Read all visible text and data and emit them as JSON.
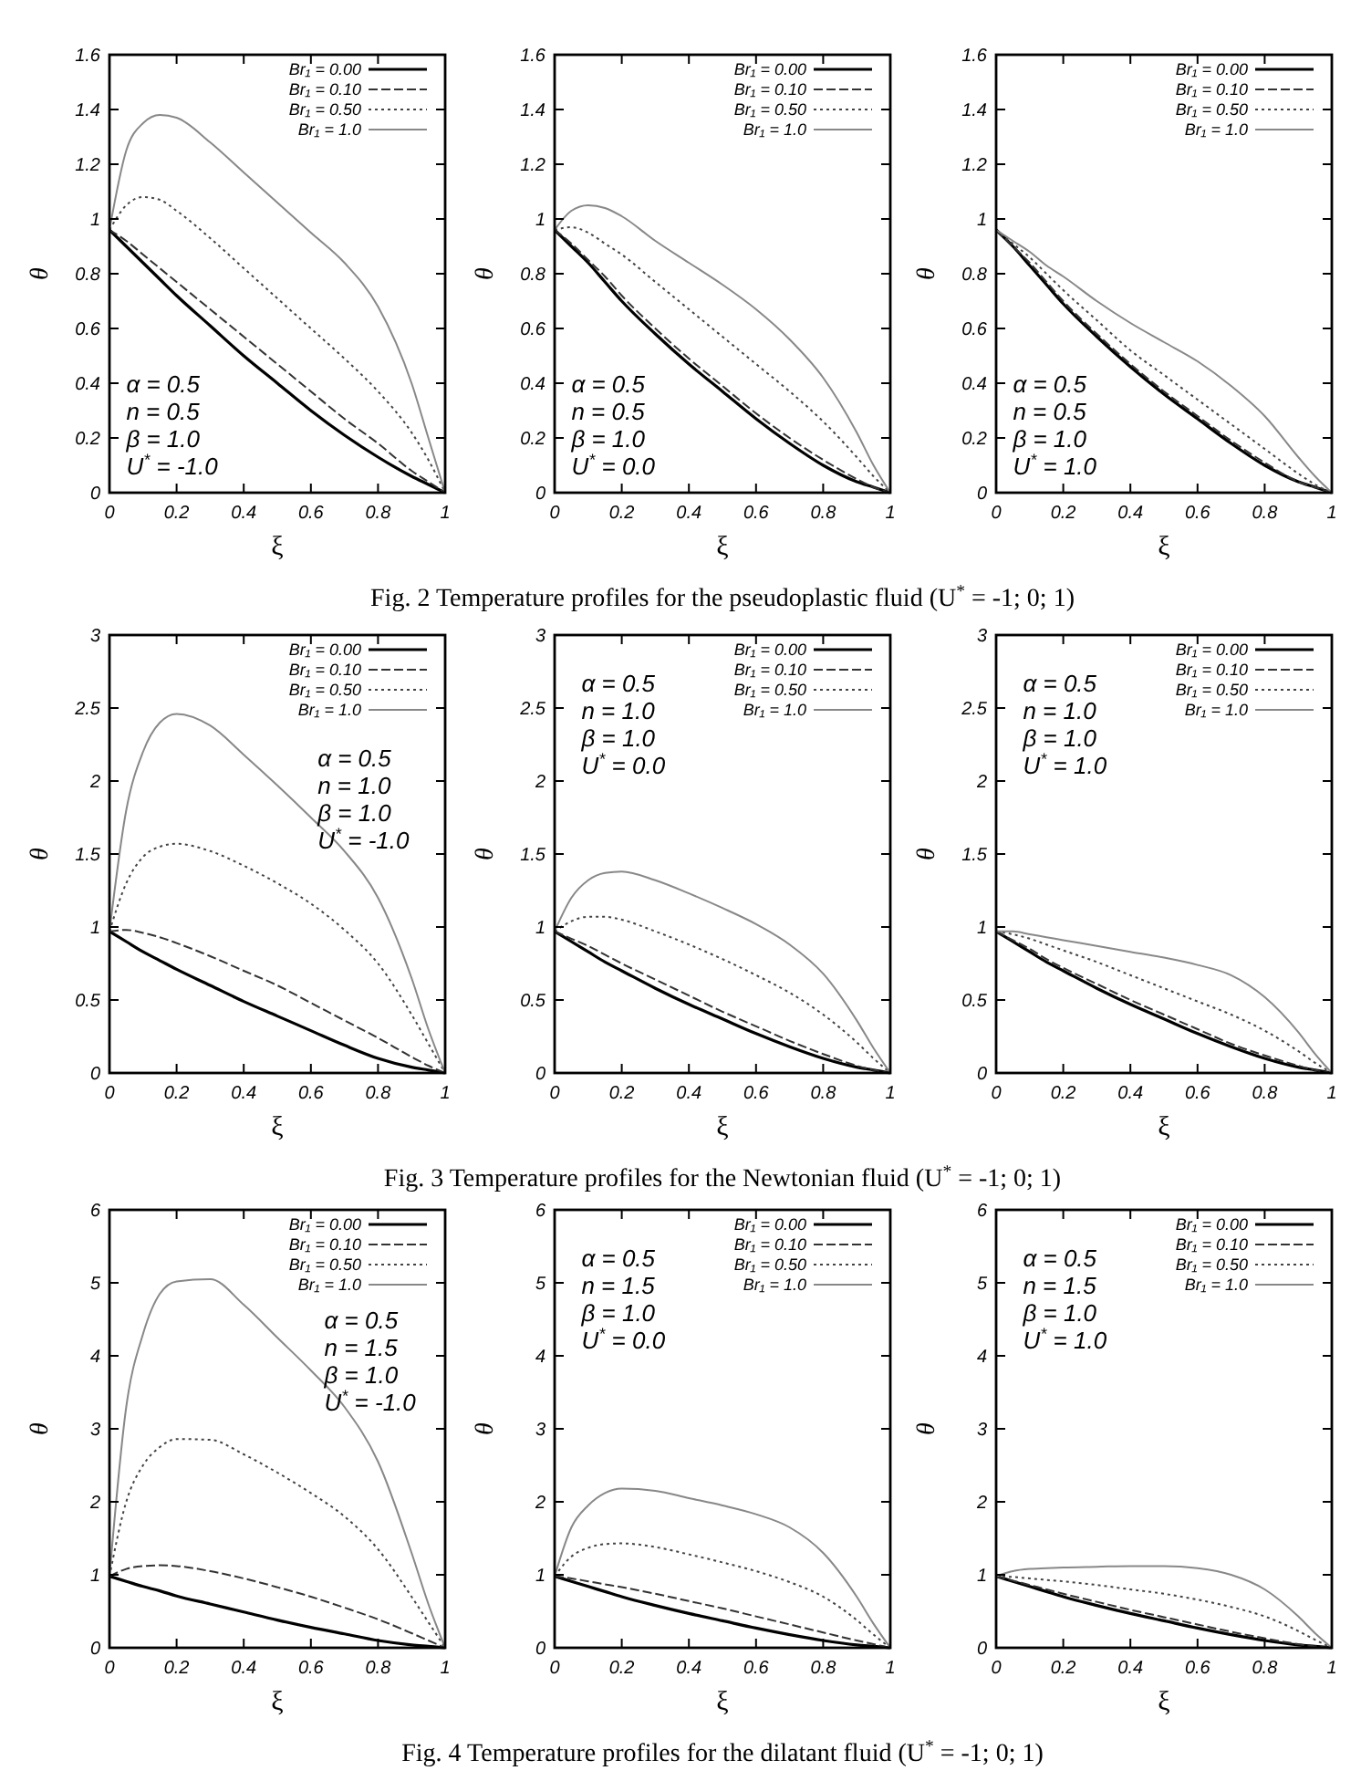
{
  "chart_data": [
    {
      "type": "line",
      "ylabel": "θ",
      "xlabel": "ξ",
      "xlim": [
        0,
        1
      ],
      "ylim": [
        0,
        1.6
      ],
      "xticks": [
        0,
        0.2,
        0.4,
        0.6,
        0.8,
        1
      ],
      "yticks": [
        0,
        0.2,
        0.4,
        0.6,
        0.8,
        1,
        1.2,
        1.4,
        1.6
      ],
      "legend": "top right",
      "x": [
        0,
        0.05,
        0.1,
        0.15,
        0.2,
        0.3,
        0.4,
        0.5,
        0.6,
        0.7,
        0.8,
        0.9,
        0.95,
        1
      ],
      "annotations": [
        "α = 0.5",
        "n = 0.5",
        "β = 1.0",
        "U$^{*}$ = -1.0"
      ],
      "series": [
        {
          "name": "Br₁ = 0.00",
          "color": "#000000",
          "line_style": "solid",
          "values": [
            0.96,
            0.9,
            0.84,
            0.78,
            0.72,
            0.61,
            0.5,
            0.4,
            0.3,
            0.21,
            0.13,
            0.06,
            0.03,
            0
          ]
        },
        {
          "name": "Br₁ = 0.10",
          "color": "#333333",
          "line_style": "dashed",
          "values": [
            0.96,
            0.92,
            0.87,
            0.82,
            0.77,
            0.67,
            0.57,
            0.47,
            0.37,
            0.27,
            0.18,
            0.08,
            0.04,
            0
          ]
        },
        {
          "name": "Br₁ = 0.50",
          "color": "#444444",
          "line_style": "dotted",
          "values": [
            0.96,
            1.05,
            1.08,
            1.07,
            1.03,
            0.93,
            0.82,
            0.71,
            0.6,
            0.49,
            0.37,
            0.22,
            0.12,
            0
          ]
        },
        {
          "name": "Br₁ = 1.0",
          "color": "#888888",
          "line_style": "solid",
          "values": [
            0.96,
            1.25,
            1.35,
            1.38,
            1.37,
            1.28,
            1.17,
            1.06,
            0.95,
            0.84,
            0.68,
            0.4,
            0.2,
            0
          ]
        }
      ]
    },
    {
      "type": "line",
      "ylabel": "θ",
      "xlabel": "ξ",
      "xlim": [
        0,
        1
      ],
      "ylim": [
        0,
        1.6
      ],
      "xticks": [
        0,
        0.2,
        0.4,
        0.6,
        0.8,
        1
      ],
      "yticks": [
        0,
        0.2,
        0.4,
        0.6,
        0.8,
        1,
        1.2,
        1.4,
        1.6
      ],
      "legend": "top right",
      "x": [
        0,
        0.05,
        0.1,
        0.15,
        0.2,
        0.3,
        0.4,
        0.5,
        0.6,
        0.7,
        0.8,
        0.9,
        0.95,
        1
      ],
      "annotations": [
        "α = 0.5",
        "n = 0.5",
        "β = 1.0",
        "U$^{*}$ = 0.0",
        "Fig. 2 Temperature profiles for the pseudoplastic fluid (U$^{*}$ = -1; 0; 1)"
      ],
      "series": [
        {
          "name": "Br₁ = 0.00",
          "color": "#000000",
          "line_style": "solid",
          "values": [
            0.96,
            0.9,
            0.84,
            0.77,
            0.7,
            0.58,
            0.47,
            0.37,
            0.27,
            0.18,
            0.1,
            0.04,
            0.02,
            0
          ]
        },
        {
          "name": "Br₁ = 0.10",
          "color": "#333333",
          "line_style": "dashed",
          "values": [
            0.96,
            0.91,
            0.85,
            0.79,
            0.72,
            0.6,
            0.49,
            0.39,
            0.29,
            0.2,
            0.12,
            0.05,
            0.02,
            0
          ]
        },
        {
          "name": "Br₁ = 0.50",
          "color": "#444444",
          "line_style": "dotted",
          "values": [
            0.96,
            0.97,
            0.95,
            0.91,
            0.87,
            0.77,
            0.67,
            0.57,
            0.47,
            0.37,
            0.26,
            0.13,
            0.06,
            0
          ]
        },
        {
          "name": "Br₁ = 1.0",
          "color": "#888888",
          "line_style": "solid",
          "values": [
            0.96,
            1.03,
            1.05,
            1.04,
            1.01,
            0.92,
            0.84,
            0.76,
            0.67,
            0.56,
            0.42,
            0.22,
            0.1,
            0
          ]
        }
      ]
    },
    {
      "type": "line",
      "ylabel": "θ",
      "xlabel": "ξ",
      "xlim": [
        0,
        1
      ],
      "ylim": [
        0,
        1.6
      ],
      "xticks": [
        0,
        0.2,
        0.4,
        0.6,
        0.8,
        1
      ],
      "yticks": [
        0,
        0.2,
        0.4,
        0.6,
        0.8,
        1,
        1.2,
        1.4,
        1.6
      ],
      "legend": "top right",
      "x": [
        0,
        0.05,
        0.1,
        0.15,
        0.2,
        0.3,
        0.4,
        0.5,
        0.6,
        0.7,
        0.8,
        0.9,
        0.95,
        1
      ],
      "annotations": [
        "α = 0.5",
        "n = 0.5",
        "β = 1.0",
        "U$^{*}$ = 1.0"
      ],
      "series": [
        {
          "name": "Br₁ = 0.00",
          "color": "#000000",
          "line_style": "solid",
          "values": [
            0.96,
            0.9,
            0.83,
            0.76,
            0.69,
            0.57,
            0.46,
            0.36,
            0.27,
            0.18,
            0.1,
            0.04,
            0.02,
            0
          ]
        },
        {
          "name": "Br₁ = 0.10",
          "color": "#333333",
          "line_style": "dashed",
          "values": [
            0.96,
            0.9,
            0.84,
            0.77,
            0.7,
            0.58,
            0.47,
            0.37,
            0.28,
            0.19,
            0.11,
            0.04,
            0.02,
            0
          ]
        },
        {
          "name": "Br₁ = 0.50",
          "color": "#444444",
          "line_style": "dotted",
          "values": [
            0.96,
            0.91,
            0.86,
            0.8,
            0.74,
            0.63,
            0.52,
            0.43,
            0.34,
            0.25,
            0.16,
            0.07,
            0.03,
            0
          ]
        },
        {
          "name": "Br₁ = 1.0",
          "color": "#888888",
          "line_style": "solid",
          "values": [
            0.96,
            0.92,
            0.88,
            0.83,
            0.79,
            0.7,
            0.62,
            0.55,
            0.48,
            0.39,
            0.28,
            0.13,
            0.06,
            0
          ]
        }
      ]
    },
    {
      "type": "line",
      "ylabel": "θ",
      "xlabel": "ξ",
      "xlim": [
        0,
        1
      ],
      "ylim": [
        0,
        3
      ],
      "xticks": [
        0,
        0.2,
        0.4,
        0.6,
        0.8,
        1
      ],
      "yticks": [
        0,
        0.5,
        1,
        1.5,
        2,
        2.5,
        3
      ],
      "legend": "top right",
      "x": [
        0,
        0.05,
        0.1,
        0.15,
        0.2,
        0.3,
        0.4,
        0.5,
        0.6,
        0.7,
        0.8,
        0.9,
        0.95,
        1
      ],
      "annotations": [
        "α = 0.5",
        "n = 1.0",
        "β = 1.0",
        "U$^{*}$ = -1.0"
      ],
      "series": [
        {
          "name": "Br₁ = 0.00",
          "color": "#000000",
          "line_style": "solid",
          "values": [
            0.97,
            0.9,
            0.83,
            0.77,
            0.71,
            0.6,
            0.49,
            0.39,
            0.29,
            0.19,
            0.1,
            0.04,
            0.02,
            0
          ]
        },
        {
          "name": "Br₁ = 0.10",
          "color": "#333333",
          "line_style": "dashed",
          "values": [
            0.97,
            0.98,
            0.96,
            0.93,
            0.89,
            0.8,
            0.7,
            0.6,
            0.48,
            0.36,
            0.24,
            0.11,
            0.05,
            0
          ]
        },
        {
          "name": "Br₁ = 0.50",
          "color": "#444444",
          "line_style": "dotted",
          "values": [
            0.97,
            1.3,
            1.48,
            1.55,
            1.57,
            1.52,
            1.42,
            1.3,
            1.16,
            0.98,
            0.75,
            0.4,
            0.2,
            0
          ]
        },
        {
          "name": "Br₁ = 1.0",
          "color": "#888888",
          "line_style": "solid",
          "values": [
            0.97,
            1.8,
            2.2,
            2.4,
            2.46,
            2.38,
            2.18,
            1.97,
            1.75,
            1.52,
            1.2,
            0.65,
            0.3,
            0
          ]
        }
      ]
    },
    {
      "type": "line",
      "ylabel": "θ",
      "xlabel": "ξ",
      "xlim": [
        0,
        1
      ],
      "ylim": [
        0,
        3
      ],
      "xticks": [
        0,
        0.2,
        0.4,
        0.6,
        0.8,
        1
      ],
      "yticks": [
        0,
        0.5,
        1,
        1.5,
        2,
        2.5,
        3
      ],
      "legend": "top right",
      "x": [
        0,
        0.05,
        0.1,
        0.15,
        0.2,
        0.3,
        0.4,
        0.5,
        0.6,
        0.7,
        0.8,
        0.9,
        0.95,
        1
      ],
      "annotations": [
        "α = 0.5",
        "n = 1.0",
        "β = 1.0",
        "U$^{*}$ = 0.0",
        "Fig. 3 Temperature profiles for the Newtonian fluid (U$^{*}$ = -1; 0; 1)"
      ],
      "series": [
        {
          "name": "Br₁ = 0.00",
          "color": "#000000",
          "line_style": "solid",
          "values": [
            0.97,
            0.9,
            0.83,
            0.76,
            0.7,
            0.58,
            0.47,
            0.37,
            0.27,
            0.18,
            0.1,
            0.04,
            0.02,
            0
          ]
        },
        {
          "name": "Br₁ = 0.10",
          "color": "#333333",
          "line_style": "dashed",
          "values": [
            0.97,
            0.92,
            0.87,
            0.81,
            0.75,
            0.64,
            0.53,
            0.42,
            0.32,
            0.22,
            0.13,
            0.05,
            0.02,
            0
          ]
        },
        {
          "name": "Br₁ = 0.50",
          "color": "#444444",
          "line_style": "dotted",
          "values": [
            0.97,
            1.04,
            1.07,
            1.07,
            1.05,
            0.97,
            0.88,
            0.78,
            0.67,
            0.55,
            0.4,
            0.21,
            0.1,
            0
          ]
        },
        {
          "name": "Br₁ = 1.0",
          "color": "#888888",
          "line_style": "solid",
          "values": [
            0.97,
            1.2,
            1.32,
            1.37,
            1.38,
            1.32,
            1.23,
            1.13,
            1.02,
            0.88,
            0.68,
            0.36,
            0.17,
            0
          ]
        }
      ]
    },
    {
      "type": "line",
      "ylabel": "θ",
      "xlabel": "ξ",
      "xlim": [
        0,
        1
      ],
      "ylim": [
        0,
        3
      ],
      "xticks": [
        0,
        0.2,
        0.4,
        0.6,
        0.8,
        1
      ],
      "yticks": [
        0,
        0.5,
        1,
        1.5,
        2,
        2.5,
        3
      ],
      "legend": "top right",
      "x": [
        0,
        0.05,
        0.1,
        0.15,
        0.2,
        0.3,
        0.4,
        0.5,
        0.6,
        0.7,
        0.8,
        0.9,
        0.95,
        1
      ],
      "annotations": [
        "α = 0.5",
        "n = 1.0",
        "β = 1.0",
        "U$^{*}$ = 1.0"
      ],
      "series": [
        {
          "name": "Br₁ = 0.00",
          "color": "#000000",
          "line_style": "solid",
          "values": [
            0.97,
            0.9,
            0.83,
            0.76,
            0.7,
            0.58,
            0.47,
            0.37,
            0.27,
            0.18,
            0.1,
            0.04,
            0.02,
            0
          ]
        },
        {
          "name": "Br₁ = 0.10",
          "color": "#333333",
          "line_style": "dashed",
          "values": [
            0.97,
            0.91,
            0.85,
            0.78,
            0.72,
            0.61,
            0.5,
            0.4,
            0.3,
            0.2,
            0.12,
            0.05,
            0.02,
            0
          ]
        },
        {
          "name": "Br₁ = 0.50",
          "color": "#444444",
          "line_style": "dotted",
          "values": [
            0.97,
            0.95,
            0.92,
            0.88,
            0.84,
            0.76,
            0.67,
            0.58,
            0.49,
            0.4,
            0.29,
            0.15,
            0.07,
            0
          ]
        },
        {
          "name": "Br₁ = 1.0",
          "color": "#888888",
          "line_style": "solid",
          "values": [
            0.97,
            0.97,
            0.95,
            0.93,
            0.91,
            0.87,
            0.83,
            0.79,
            0.74,
            0.67,
            0.52,
            0.28,
            0.13,
            0
          ]
        }
      ]
    },
    {
      "type": "line",
      "ylabel": "θ",
      "xlabel": "ξ",
      "xlim": [
        0,
        1
      ],
      "ylim": [
        0,
        6
      ],
      "xticks": [
        0,
        0.2,
        0.4,
        0.6,
        0.8,
        1
      ],
      "yticks": [
        0,
        1,
        2,
        3,
        4,
        5,
        6
      ],
      "legend": "top right",
      "x": [
        0,
        0.05,
        0.1,
        0.15,
        0.2,
        0.3,
        0.4,
        0.5,
        0.6,
        0.7,
        0.8,
        0.9,
        0.95,
        1
      ],
      "annotations": [
        "α = 0.5",
        "n = 1.5",
        "β = 1.0",
        "U$^{*}$ = -1.0"
      ],
      "series": [
        {
          "name": "Br₁ = 0.00",
          "color": "#000000",
          "line_style": "solid",
          "values": [
            0.98,
            0.91,
            0.84,
            0.78,
            0.71,
            0.6,
            0.49,
            0.38,
            0.28,
            0.19,
            0.1,
            0.04,
            0.02,
            0
          ]
        },
        {
          "name": "Br₁ = 0.10",
          "color": "#333333",
          "line_style": "dashed",
          "values": [
            0.98,
            1.08,
            1.12,
            1.13,
            1.12,
            1.05,
            0.95,
            0.83,
            0.7,
            0.55,
            0.39,
            0.2,
            0.1,
            0
          ]
        },
        {
          "name": "Br₁ = 0.50",
          "color": "#444444",
          "line_style": "dotted",
          "values": [
            0.98,
            2,
            2.5,
            2.75,
            2.86,
            2.85,
            2.65,
            2.4,
            2.12,
            1.8,
            1.35,
            0.7,
            0.35,
            0
          ]
        },
        {
          "name": "Br₁ = 1.0",
          "color": "#888888",
          "line_style": "solid",
          "values": [
            0.98,
            3.3,
            4.3,
            4.85,
            5.02,
            5.05,
            4.7,
            4.25,
            3.8,
            3.3,
            2.55,
            1.3,
            0.6,
            0
          ]
        }
      ]
    },
    {
      "type": "line",
      "ylabel": "θ",
      "xlabel": "ξ",
      "xlim": [
        0,
        1
      ],
      "ylim": [
        0,
        6
      ],
      "xticks": [
        0,
        0.2,
        0.4,
        0.6,
        0.8,
        1
      ],
      "yticks": [
        0,
        1,
        2,
        3,
        4,
        5,
        6
      ],
      "legend": "top right",
      "x": [
        0,
        0.05,
        0.1,
        0.15,
        0.2,
        0.3,
        0.4,
        0.5,
        0.6,
        0.7,
        0.8,
        0.9,
        0.95,
        1
      ],
      "annotations": [
        "α = 0.5",
        "n = 1.5",
        "β = 1.0",
        "U$^{*}$ = 0.0",
        "Fig. 4 Temperature profiles for the dilatant fluid (U$^{*}$ = -1; 0; 1)"
      ],
      "series": [
        {
          "name": "Br₁ = 0.00",
          "color": "#000000",
          "line_style": "solid",
          "values": [
            0.98,
            0.91,
            0.84,
            0.77,
            0.7,
            0.58,
            0.47,
            0.37,
            0.27,
            0.18,
            0.1,
            0.04,
            0.02,
            0
          ]
        },
        {
          "name": "Br₁ = 0.10",
          "color": "#333333",
          "line_style": "dashed",
          "values": [
            0.98,
            0.95,
            0.91,
            0.87,
            0.83,
            0.74,
            0.64,
            0.54,
            0.43,
            0.32,
            0.21,
            0.1,
            0.05,
            0
          ]
        },
        {
          "name": "Br₁ = 0.50",
          "color": "#444444",
          "line_style": "dotted",
          "values": [
            0.98,
            1.25,
            1.37,
            1.42,
            1.43,
            1.38,
            1.28,
            1.17,
            1.05,
            0.9,
            0.7,
            0.38,
            0.18,
            0
          ]
        },
        {
          "name": "Br₁ = 1.0",
          "color": "#888888",
          "line_style": "solid",
          "values": [
            0.98,
            1.65,
            1.95,
            2.12,
            2.18,
            2.15,
            2.05,
            1.95,
            1.83,
            1.65,
            1.3,
            0.7,
            0.33,
            0
          ]
        }
      ]
    },
    {
      "type": "line",
      "ylabel": "θ",
      "xlabel": "ξ",
      "xlim": [
        0,
        1
      ],
      "ylim": [
        0,
        6
      ],
      "xticks": [
        0,
        0.2,
        0.4,
        0.6,
        0.8,
        1
      ],
      "yticks": [
        0,
        1,
        2,
        3,
        4,
        5,
        6
      ],
      "legend": "top right",
      "x": [
        0,
        0.05,
        0.1,
        0.15,
        0.2,
        0.3,
        0.4,
        0.5,
        0.6,
        0.7,
        0.8,
        0.9,
        0.95,
        1
      ],
      "annotations": [
        "α = 0.5",
        "n = 1.5",
        "β = 1.0",
        "U$^{*}$ = 1.0"
      ],
      "series": [
        {
          "name": "Br₁ = 0.00",
          "color": "#000000",
          "line_style": "solid",
          "values": [
            0.98,
            0.91,
            0.84,
            0.77,
            0.7,
            0.58,
            0.47,
            0.37,
            0.27,
            0.18,
            0.1,
            0.04,
            0.02,
            0
          ]
        },
        {
          "name": "Br₁ = 0.10",
          "color": "#333333",
          "line_style": "dashed",
          "values": [
            0.98,
            0.92,
            0.86,
            0.8,
            0.74,
            0.63,
            0.52,
            0.42,
            0.32,
            0.22,
            0.13,
            0.05,
            0.02,
            0
          ]
        },
        {
          "name": "Br₁ = 0.50",
          "color": "#444444",
          "line_style": "dotted",
          "values": [
            0.98,
            0.97,
            0.95,
            0.93,
            0.91,
            0.86,
            0.8,
            0.74,
            0.66,
            0.56,
            0.43,
            0.23,
            0.11,
            0
          ]
        },
        {
          "name": "Br₁ = 1.0",
          "color": "#888888",
          "line_style": "solid",
          "values": [
            0.98,
            1.05,
            1.08,
            1.09,
            1.1,
            1.11,
            1.12,
            1.12,
            1.09,
            1,
            0.8,
            0.43,
            0.2,
            0
          ]
        }
      ]
    }
  ]
}
